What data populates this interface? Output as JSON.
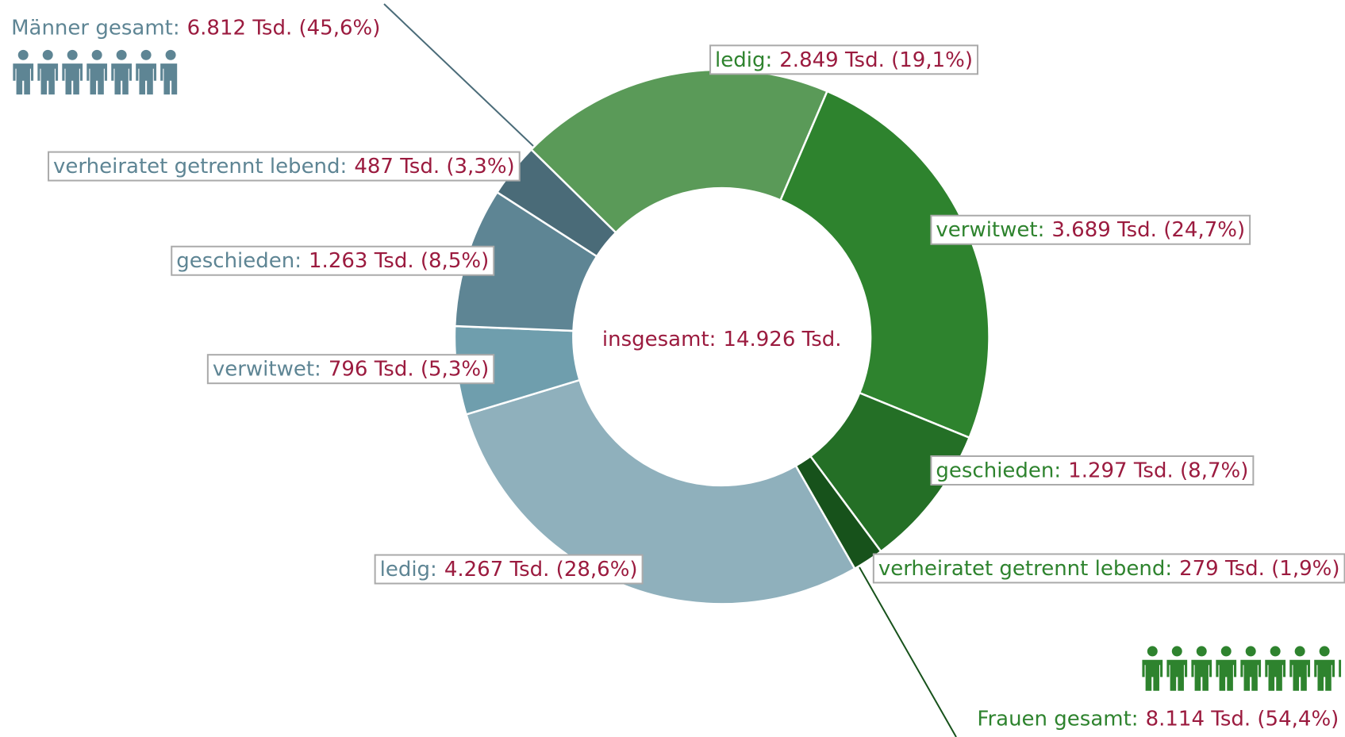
{
  "chart_data": {
    "type": "donut",
    "total": {
      "name": "insgesamt:",
      "value": 14926,
      "value_label": "14.926 Tsd."
    },
    "value_color": "#9b1b3f",
    "groups": [
      {
        "name": "Frauen gesamt:",
        "value": 8114,
        "value_label": "8.114 Tsd. (54,4%)",
        "color": "#2e832e",
        "categories": [
          "ledig:",
          "verwitwet:",
          "geschieden:",
          "verheiratet getrennt lebend:"
        ],
        "values": [
          2849,
          3689,
          1297,
          279
        ],
        "value_labels": [
          "2.849 Tsd. (19,1%)",
          "3.689 Tsd. (24,7%)",
          "1.297 Tsd. (8,7%)",
          "279 Tsd. (1,9%)"
        ],
        "colors": [
          "#5a9a58",
          "#2e832e",
          "#246f26",
          "#17521b"
        ]
      },
      {
        "name": "Männer gesamt:",
        "value": 6812,
        "value_label": "6.812 Tsd. (45,6%)",
        "color": "#5e8594",
        "categories": [
          "ledig:",
          "verwitwet:",
          "geschieden:",
          "verheiratet getrennt lebend:"
        ],
        "values": [
          4267,
          796,
          1263,
          487
        ],
        "value_labels": [
          "4.267 Tsd. (28,6%)",
          "796 Tsd. (5,3%)",
          "1.263 Tsd. (8,5%)",
          "487 Tsd. (3,3%)"
        ],
        "colors": [
          "#8fb0bc",
          "#6f9ead",
          "#5e8594",
          "#4a6b78"
        ]
      }
    ]
  }
}
